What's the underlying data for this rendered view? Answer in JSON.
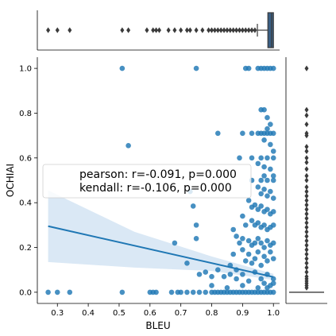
{
  "chart_data": {
    "type": "scatter",
    "xlabel": "BLEU",
    "ylabel": "OCHIAI",
    "xlim": [
      0.235,
      1.02
    ],
    "ylim": [
      -0.05,
      1.05
    ],
    "xticks": [
      "0.3",
      "0.4",
      "0.5",
      "0.6",
      "0.7",
      "0.8",
      "0.9",
      "1.0"
    ],
    "yticks": [
      "0.0",
      "0.2",
      "0.4",
      "0.6",
      "0.8",
      "1.0"
    ],
    "annotation_lines": [
      "pearson: r=-0.091, p=0.000",
      "kendall: r=-0.106, p=0.000"
    ],
    "regression": {
      "x": [
        0.27,
        1.0
      ],
      "y": [
        0.295,
        0.068
      ],
      "band_at_left": [
        0.135,
        0.455
      ],
      "band_at_right": [
        0.055,
        0.082
      ]
    },
    "colors": {
      "points": "#1f77b4",
      "box": "#3a5f85",
      "band": "#c6dbef",
      "outlier": "#3b3b3b"
    },
    "points": [
      [
        0.51,
        1.0
      ],
      [
        0.75,
        1.0
      ],
      [
        0.91,
        1.0
      ],
      [
        0.92,
        1.0
      ],
      [
        0.95,
        1.0
      ],
      [
        0.96,
        1.0
      ],
      [
        0.97,
        1.0
      ],
      [
        0.98,
        1.0
      ],
      [
        0.99,
        1.0
      ],
      [
        1.0,
        1.0
      ],
      [
        0.96,
        0.815
      ],
      [
        0.97,
        0.815
      ],
      [
        0.98,
        0.78
      ],
      [
        0.99,
        0.75
      ],
      [
        0.98,
        0.73
      ],
      [
        0.82,
        0.71
      ],
      [
        0.9,
        0.71
      ],
      [
        0.93,
        0.71
      ],
      [
        0.95,
        0.71
      ],
      [
        0.96,
        0.71
      ],
      [
        0.97,
        0.71
      ],
      [
        0.98,
        0.71
      ],
      [
        0.99,
        0.71
      ],
      [
        1.0,
        0.71
      ],
      [
        0.53,
        0.655
      ],
      [
        0.97,
        0.68
      ],
      [
        0.99,
        0.66
      ],
      [
        1.0,
        0.63
      ],
      [
        0.89,
        0.6
      ],
      [
        0.93,
        0.6
      ],
      [
        0.96,
        0.6
      ],
      [
        0.98,
        0.6
      ],
      [
        1.0,
        0.6
      ],
      [
        0.95,
        0.575
      ],
      [
        0.97,
        0.56
      ],
      [
        0.99,
        0.55
      ],
      [
        0.97,
        0.52
      ],
      [
        1.0,
        0.52
      ],
      [
        0.93,
        0.5
      ],
      [
        0.96,
        0.5
      ],
      [
        0.98,
        0.5
      ],
      [
        1.0,
        0.5
      ],
      [
        0.95,
        0.47
      ],
      [
        0.97,
        0.46
      ],
      [
        0.99,
        0.45
      ],
      [
        0.96,
        0.44
      ],
      [
        0.98,
        0.43
      ],
      [
        1.0,
        0.42
      ],
      [
        0.73,
        0.45
      ],
      [
        0.74,
        0.385
      ],
      [
        0.92,
        0.41
      ],
      [
        0.93,
        0.38
      ],
      [
        0.94,
        0.39
      ],
      [
        0.95,
        0.37
      ],
      [
        0.96,
        0.385
      ],
      [
        0.97,
        0.36
      ],
      [
        0.98,
        0.37
      ],
      [
        0.99,
        0.35
      ],
      [
        1.0,
        0.36
      ],
      [
        0.75,
        0.3
      ],
      [
        0.9,
        0.34
      ],
      [
        0.91,
        0.3
      ],
      [
        0.93,
        0.32
      ],
      [
        0.94,
        0.3
      ],
      [
        0.95,
        0.31
      ],
      [
        0.96,
        0.29
      ],
      [
        0.97,
        0.3
      ],
      [
        0.98,
        0.28
      ],
      [
        0.99,
        0.29
      ],
      [
        1.0,
        0.3
      ],
      [
        0.75,
        0.24
      ],
      [
        0.87,
        0.28
      ],
      [
        0.88,
        0.25
      ],
      [
        0.89,
        0.22
      ],
      [
        0.9,
        0.24
      ],
      [
        0.92,
        0.23
      ],
      [
        0.93,
        0.21
      ],
      [
        0.94,
        0.22
      ],
      [
        0.95,
        0.24
      ],
      [
        0.96,
        0.22
      ],
      [
        0.97,
        0.2
      ],
      [
        0.98,
        0.23
      ],
      [
        0.99,
        0.21
      ],
      [
        1.0,
        0.22
      ],
      [
        0.68,
        0.22
      ],
      [
        0.86,
        0.12
      ],
      [
        0.87,
        0.17
      ],
      [
        0.88,
        0.1
      ],
      [
        0.9,
        0.19
      ],
      [
        0.91,
        0.14
      ],
      [
        0.92,
        0.17
      ],
      [
        0.93,
        0.13
      ],
      [
        0.94,
        0.15
      ],
      [
        0.95,
        0.18
      ],
      [
        0.96,
        0.12
      ],
      [
        0.97,
        0.16
      ],
      [
        0.98,
        0.14
      ],
      [
        0.99,
        0.18
      ],
      [
        1.0,
        0.15
      ],
      [
        0.72,
        0.13
      ],
      [
        0.76,
        0.08
      ],
      [
        0.78,
        0.09
      ],
      [
        0.8,
        0.07
      ],
      [
        0.82,
        0.1
      ],
      [
        0.84,
        0.07
      ],
      [
        0.86,
        0.08
      ],
      [
        0.88,
        0.06
      ],
      [
        0.9,
        0.08
      ],
      [
        0.92,
        0.05
      ],
      [
        0.94,
        0.09
      ],
      [
        0.96,
        0.06
      ],
      [
        0.98,
        0.08
      ],
      [
        1.0,
        0.06
      ],
      [
        0.27,
        0.0
      ],
      [
        0.3,
        0.0
      ],
      [
        0.34,
        0.0
      ],
      [
        0.51,
        0.0
      ],
      [
        0.6,
        0.0
      ],
      [
        0.61,
        0.0
      ],
      [
        0.62,
        0.0
      ],
      [
        0.67,
        0.0
      ],
      [
        0.69,
        0.0
      ],
      [
        0.7,
        0.0
      ],
      [
        0.72,
        0.0
      ],
      [
        0.74,
        0.0
      ],
      [
        0.76,
        0.0
      ],
      [
        0.78,
        0.0
      ],
      [
        0.8,
        0.0
      ],
      [
        0.81,
        0.0
      ],
      [
        0.82,
        0.0
      ],
      [
        0.83,
        0.0
      ],
      [
        0.84,
        0.0
      ],
      [
        0.85,
        0.0
      ],
      [
        0.86,
        0.0
      ],
      [
        0.87,
        0.0
      ],
      [
        0.88,
        0.0
      ],
      [
        0.89,
        0.0
      ],
      [
        0.9,
        0.0
      ],
      [
        0.91,
        0.0
      ],
      [
        0.92,
        0.0
      ],
      [
        0.93,
        0.0
      ],
      [
        0.94,
        0.0
      ],
      [
        0.95,
        0.0
      ],
      [
        0.96,
        0.0
      ],
      [
        0.97,
        0.0
      ],
      [
        0.98,
        0.0
      ],
      [
        0.99,
        0.0
      ],
      [
        1.0,
        0.0
      ],
      [
        0.8,
        0.03
      ],
      [
        0.85,
        0.02
      ],
      [
        0.9,
        0.03
      ],
      [
        0.95,
        0.02
      ],
      [
        0.99,
        0.03
      ],
      [
        1.0,
        0.04
      ],
      [
        0.98,
        0.02
      ],
      [
        0.97,
        0.04
      ]
    ],
    "marginal_x": {
      "box": {
        "q1": 0.982,
        "median": 0.994,
        "q3": 1.0,
        "whisker_low": 0.948,
        "whisker_high": 1.0
      },
      "outliers": [
        0.27,
        0.3,
        0.34,
        0.51,
        0.53,
        0.59,
        0.61,
        0.62,
        0.63,
        0.66,
        0.68,
        0.7,
        0.72,
        0.73,
        0.75,
        0.77,
        0.79,
        0.8,
        0.81,
        0.82,
        0.83,
        0.84,
        0.85,
        0.86,
        0.87,
        0.88,
        0.89,
        0.9,
        0.91,
        0.92,
        0.93,
        0.94
      ]
    },
    "marginal_y": {
      "box": {
        "q1": 0.0,
        "median": 0.0,
        "q3": 0.0,
        "whisker_low": 0.0,
        "whisker_high": 0.0
      },
      "outliers": [
        1.0,
        0.815,
        0.79,
        0.75,
        0.71,
        0.7,
        0.65,
        0.63,
        0.6,
        0.58,
        0.55,
        0.52,
        0.5,
        0.47,
        0.45,
        0.43,
        0.41,
        0.39,
        0.37,
        0.35,
        0.33,
        0.31,
        0.29,
        0.27,
        0.25,
        0.23,
        0.21,
        0.19,
        0.17,
        0.15,
        0.13,
        0.11,
        0.09,
        0.07,
        0.06,
        0.05,
        0.04,
        0.03,
        0.02
      ]
    }
  }
}
